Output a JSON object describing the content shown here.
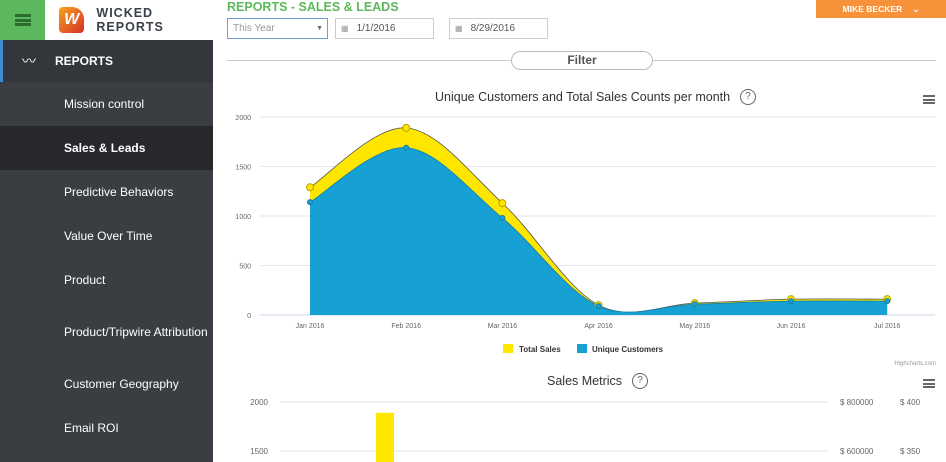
{
  "app": {
    "brand": "WICKED REPORTS",
    "logo_letter": "W"
  },
  "header": {
    "title": "REPORTS - SALES & LEADS",
    "range": "This Year",
    "start_date": "1/1/2016",
    "end_date": "8/29/2016",
    "user": "MIKE BECKER",
    "filter": "Filter"
  },
  "sidebar": {
    "section": "REPORTS",
    "items": [
      {
        "label": "Mission control"
      },
      {
        "label": "Sales & Leads"
      },
      {
        "label": "Predictive Behaviors"
      },
      {
        "label": "Value Over Time"
      },
      {
        "label": "Product"
      },
      {
        "label": "Product/Tripwire Attribution"
      },
      {
        "label": "Customer Geography"
      },
      {
        "label": "Email ROI"
      }
    ]
  },
  "chart_data": [
    {
      "type": "area",
      "title": "Unique Customers and Total Sales Counts per month",
      "categories": [
        "Jan 2016",
        "Feb 2016",
        "Mar 2016",
        "Apr 2016",
        "May 2016",
        "Jun 2016",
        "Jul 2016"
      ],
      "series": [
        {
          "name": "Total Sales",
          "color": "#ffe600",
          "values": [
            1290,
            1890,
            1130,
            100,
            120,
            160,
            160
          ]
        },
        {
          "name": "Unique Customers",
          "color": "#16a0d3",
          "values": [
            1140,
            1690,
            980,
            90,
            110,
            140,
            140
          ]
        }
      ],
      "ylim": [
        0,
        2000
      ],
      "yticks": [
        0,
        500,
        1000,
        1500,
        2000
      ],
      "legend": "bottom",
      "credit": "Highcharts.com"
    },
    {
      "type": "bar",
      "title": "Sales Metrics",
      "yticks_left": [
        2000,
        1500
      ],
      "yticks_right1": [
        "$ 800000",
        "$ 600000"
      ],
      "yticks_right2": [
        "$ 400",
        "$ 350"
      ],
      "series": [
        {
          "name": "",
          "color": "#ffe600",
          "values": [
            1890
          ]
        }
      ]
    }
  ]
}
